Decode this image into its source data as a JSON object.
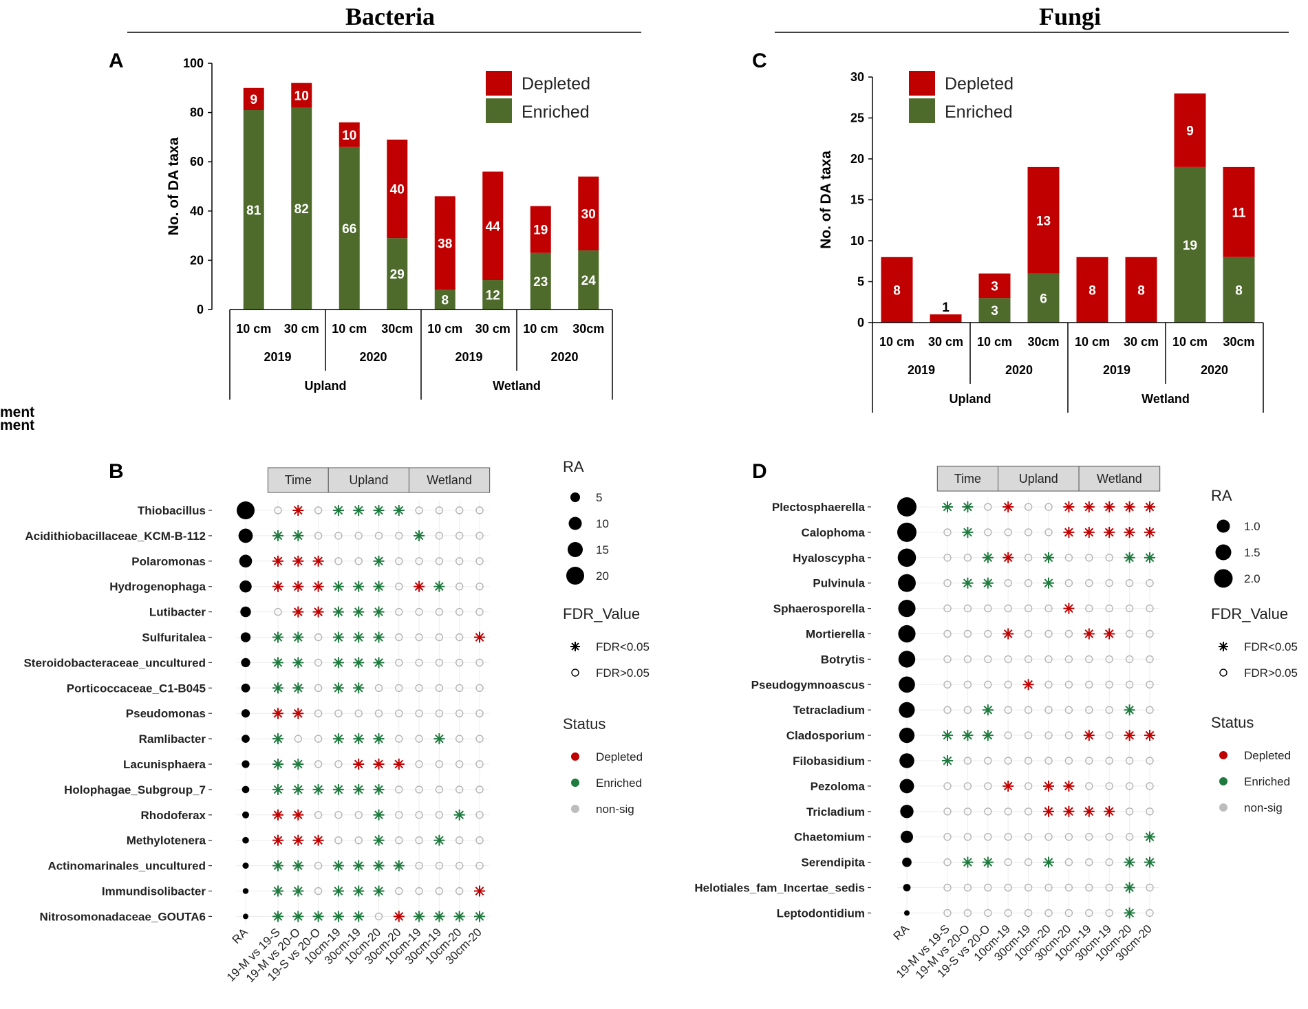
{
  "titles": {
    "bacteria": "Bacteria",
    "fungi": "Fungi"
  },
  "colors": {
    "depleted": "#c00000",
    "enriched": "#4e6b2c",
    "enriched_star": "#1e7a3e",
    "nonsig": "#b4b4b4",
    "facet_bg": "#d9d9d9"
  },
  "chart_data": [
    {
      "id": "A",
      "type": "bar",
      "stacked": true,
      "panel_label": "A",
      "ylabel": "No. of DA taxa",
      "xlabel": "Treatment",
      "ylim": [
        0,
        100
      ],
      "yticks": [
        0,
        20,
        40,
        60,
        80,
        100
      ],
      "categories": [
        "10 cm",
        "30 cm",
        "10 cm",
        "30cm",
        "10 cm",
        "30 cm",
        "10 cm",
        "30cm"
      ],
      "years": [
        "2019",
        "2020",
        "2019",
        "2020"
      ],
      "sites": [
        "Upland",
        "Wetland"
      ],
      "series": [
        {
          "name": "Enriched",
          "values": [
            81,
            82,
            66,
            29,
            8,
            12,
            23,
            24
          ]
        },
        {
          "name": "Depleted",
          "values": [
            9,
            10,
            10,
            40,
            38,
            44,
            19,
            30
          ]
        }
      ],
      "legend": [
        "Depleted",
        "Enriched"
      ]
    },
    {
      "id": "C",
      "type": "bar",
      "stacked": true,
      "panel_label": "C",
      "ylabel": "No. of DA taxa",
      "xlabel": "Treatment",
      "ylim": [
        0,
        30
      ],
      "yticks": [
        0,
        5,
        10,
        15,
        20,
        25,
        30
      ],
      "categories": [
        "10 cm",
        "30 cm",
        "10 cm",
        "30cm",
        "10 cm",
        "30 cm",
        "10 cm",
        "30cm"
      ],
      "years": [
        "2019",
        "2020",
        "2019",
        "2020"
      ],
      "sites": [
        "Upland",
        "Wetland"
      ],
      "series": [
        {
          "name": "Enriched",
          "values": [
            0,
            0,
            3,
            6,
            0,
            0,
            19,
            8
          ]
        },
        {
          "name": "Depleted",
          "values": [
            8,
            1,
            3,
            13,
            8,
            8,
            9,
            11
          ]
        }
      ],
      "legend": [
        "Depleted",
        "Enriched"
      ]
    },
    {
      "id": "B",
      "type": "scatter",
      "panel_label": "B",
      "facets": [
        "Time",
        "Upland",
        "Wetland"
      ],
      "x": [
        "19-M vs 19-S",
        "19-M vs 20-O",
        "19-S vs 20-O",
        "10cm-19",
        "30cm-19",
        "10cm-20",
        "30cm-20",
        "10cm-19",
        "30cm-19",
        "10cm-20",
        "30cm-20"
      ],
      "ra_label": "RA",
      "taxa": [
        "Thiobacillus",
        "Acidithiobacillaceae_KCM-B-112",
        "Polaromonas",
        "Hydrogenophaga",
        "Lutibacter",
        "Sulfuritalea",
        "Steroidobacteraceae_uncultured",
        "Porticoccaceae_C1-B045",
        "Pseudomonas",
        "Ramlibacter",
        "Lacunisphaera",
        "Holophagae_Subgroup_7",
        "Rhodoferax",
        "Methylotenera",
        "Actinomarinales_uncultured",
        "Immundisolibacter",
        "Nitrosomonadaceae_GOUTA6"
      ],
      "ra_values": [
        21,
        16,
        14,
        13,
        11,
        10,
        9,
        8.5,
        8,
        7.5,
        7,
        6.5,
        6,
        5.5,
        5,
        4.5,
        4
      ],
      "status_matrix": [
        "ODOEEEEOOOO",
        "EEOOOOOEOOO",
        "DDDOOEOOOOO",
        "DDDEEEODEOO",
        "ODDEEEOOOOO",
        "EEOEEEOOOOD",
        "EEOEEEOOOOO",
        "EEOEEOOOOOO",
        "DDOOOOOOOOO",
        "EOOEEEOOEOO",
        "EEOODDDOOOO",
        "EEEEEEOOOOO",
        "DDOOOEOOOEO",
        "DDDOOEOOEOO",
        "EEOEEEEOOOO",
        "EEOEEEOOOOD",
        "EEEEEODEEEE"
      ],
      "ra_legend": {
        "title": "RA",
        "values": [
          5,
          10,
          15,
          20
        ]
      },
      "fdr_legend": {
        "title": "FDR_Value",
        "items": [
          "FDR<0.05",
          "FDR>0.05"
        ]
      },
      "status_legend": {
        "title": "Status",
        "items": [
          "Depleted",
          "Enriched",
          "non-sig"
        ]
      }
    },
    {
      "id": "D",
      "type": "scatter",
      "panel_label": "D",
      "facets": [
        "Time",
        "Upland",
        "Wetland"
      ],
      "x": [
        "19-M vs 19-S",
        "19-M vs 20-O",
        "19-S vs 20-O",
        "10cm-19",
        "30cm-19",
        "10cm-20",
        "30cm-20",
        "10cm-19",
        "30cm-19",
        "10cm-20",
        "30cm-20"
      ],
      "ra_label": "RA",
      "taxa": [
        "Plectosphaerella",
        "Calophoma",
        "Hyaloscypha",
        "Pulvinula",
        "Sphaerosporella",
        "Mortierella",
        "Botrytis",
        "Pseudogymnoascus",
        "Tetracladium",
        "Cladosporium",
        "Filobasidium",
        "Pezoloma",
        "Tricladium",
        "Chaetomium",
        "Serendipita",
        "Helotiales_fam_Incertae_sedis",
        "Leptodontidium"
      ],
      "ra_values": [
        2.3,
        2.3,
        2.2,
        2.15,
        2.1,
        2.1,
        2.05,
        2.0,
        1.95,
        1.9,
        1.85,
        1.8,
        1.7,
        1.6,
        1.3,
        1.1,
        0.9
      ],
      "status_matrix": [
        "EEODOODDDDD",
        "OEOOOODDDDD",
        "OOEDOEOOOEE",
        "OEEOOEOOOOO",
        "OOOOOODOOOO",
        "OOODOOODDOO",
        "OOOOOOOOOOO",
        "OOOODOOOOOO",
        "OOEOOOOOOEO",
        "EEEOOOODODD",
        "EOOOOOOOOOO",
        "OOODODDOOOO",
        "OOOOODDDDOO",
        "OOOOOOOOOOE",
        "OEEOOEOOOEE",
        "OOOOOOOOOEO",
        "OOOOOOOOOEO"
      ],
      "ra_legend": {
        "title": "RA",
        "values": [
          "1.0",
          "1.5",
          "2.0"
        ]
      },
      "fdr_legend": {
        "title": "FDR_Value",
        "items": [
          "FDR<0.05",
          "FDR>0.05"
        ]
      },
      "status_legend": {
        "title": "Status",
        "items": [
          "Depleted",
          "Enriched",
          "non-sig"
        ]
      }
    }
  ]
}
